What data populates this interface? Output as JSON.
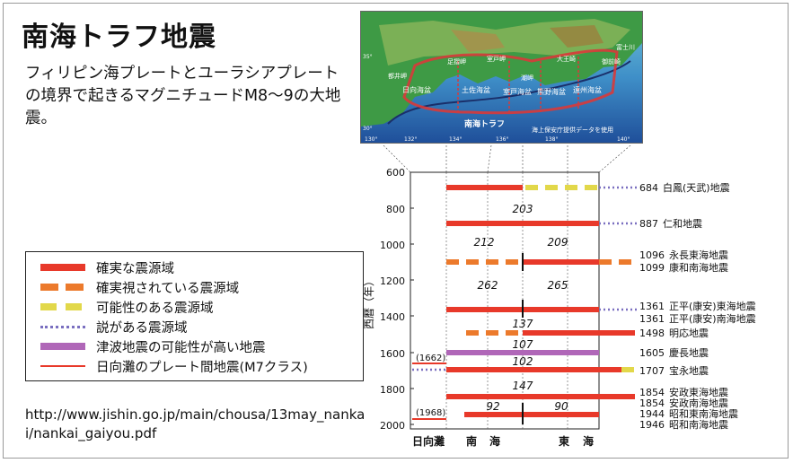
{
  "title": "南海トラフ地震",
  "description": "フィリピン海プレートとユーラシアプレートの境界で起きるマグニチュードM8～9の大地震。",
  "url": "http://www.jishin.go.jp/main/chousa/13may_nankai/nankai_gaiyou.pdf",
  "legend": [
    {
      "label": "確実な震源域",
      "style": "solid",
      "color": "#e8392a"
    },
    {
      "label": "確実視されている震源域",
      "style": "dashed",
      "color": "#ec7a2c"
    },
    {
      "label": "可能性のある震源域",
      "style": "dashed",
      "color": "#e2d84a"
    },
    {
      "label": "説がある震源域",
      "style": "dotted",
      "color": "#7a6fc0"
    },
    {
      "label": "津波地震の可能性が高い地震",
      "style": "solid",
      "color": "#b067b8"
    },
    {
      "label": "日向灘のプレート間地震(M7クラス)",
      "style": "thin",
      "color": "#e8392a"
    }
  ],
  "map": {
    "regions": [
      "都井岬",
      "足摺岬",
      "室戸岬",
      "潮岬",
      "大王崎",
      "御前崎",
      "富士川"
    ],
    "basins": [
      "日向海盆",
      "土佐海盆",
      "室戸海盆",
      "熊野海盆",
      "遠州海盆"
    ],
    "trough": "南海トラフ",
    "credit": "海上保安庁提供データを使用",
    "lat_labels": [
      "35°",
      "30°"
    ],
    "lon_labels": [
      "130°",
      "132°",
      "134°",
      "136°",
      "138°",
      "140°"
    ]
  },
  "timeline": {
    "y_axis_label": "西暦（年）",
    "y_ticks": [
      "600",
      "800",
      "1000",
      "1200",
      "1400",
      "1600",
      "1800",
      "2000"
    ],
    "x_labels": [
      "日向灘",
      "南",
      "海",
      "東",
      "海"
    ],
    "hyuganada_labels": [
      "(1662)",
      "(1968)"
    ],
    "intervals": [
      "203",
      "212",
      "209",
      "262",
      "265",
      "137",
      "107",
      "102",
      "147",
      "92",
      "90"
    ],
    "events": [
      {
        "year": "684",
        "name": "白鳳(天武)地震"
      },
      {
        "year": "887",
        "name": "仁和地震"
      },
      {
        "year": "1096",
        "name": "永長東海地震"
      },
      {
        "year": "1099",
        "name": "康和南海地震"
      },
      {
        "year": "1361",
        "name": "正平(康安)東海地震"
      },
      {
        "year": "1361",
        "name": "正平(康安)南海地震"
      },
      {
        "year": "1498",
        "name": "明応地震"
      },
      {
        "year": "1605",
        "name": "慶長地震"
      },
      {
        "year": "1707",
        "name": "宝永地震"
      },
      {
        "year": "1854",
        "name": "安政東海地震"
      },
      {
        "year": "1854",
        "name": "安政南海地震"
      },
      {
        "year": "1944",
        "name": "昭和東南海地震"
      },
      {
        "year": "1946",
        "name": "昭和南海地震"
      }
    ]
  }
}
